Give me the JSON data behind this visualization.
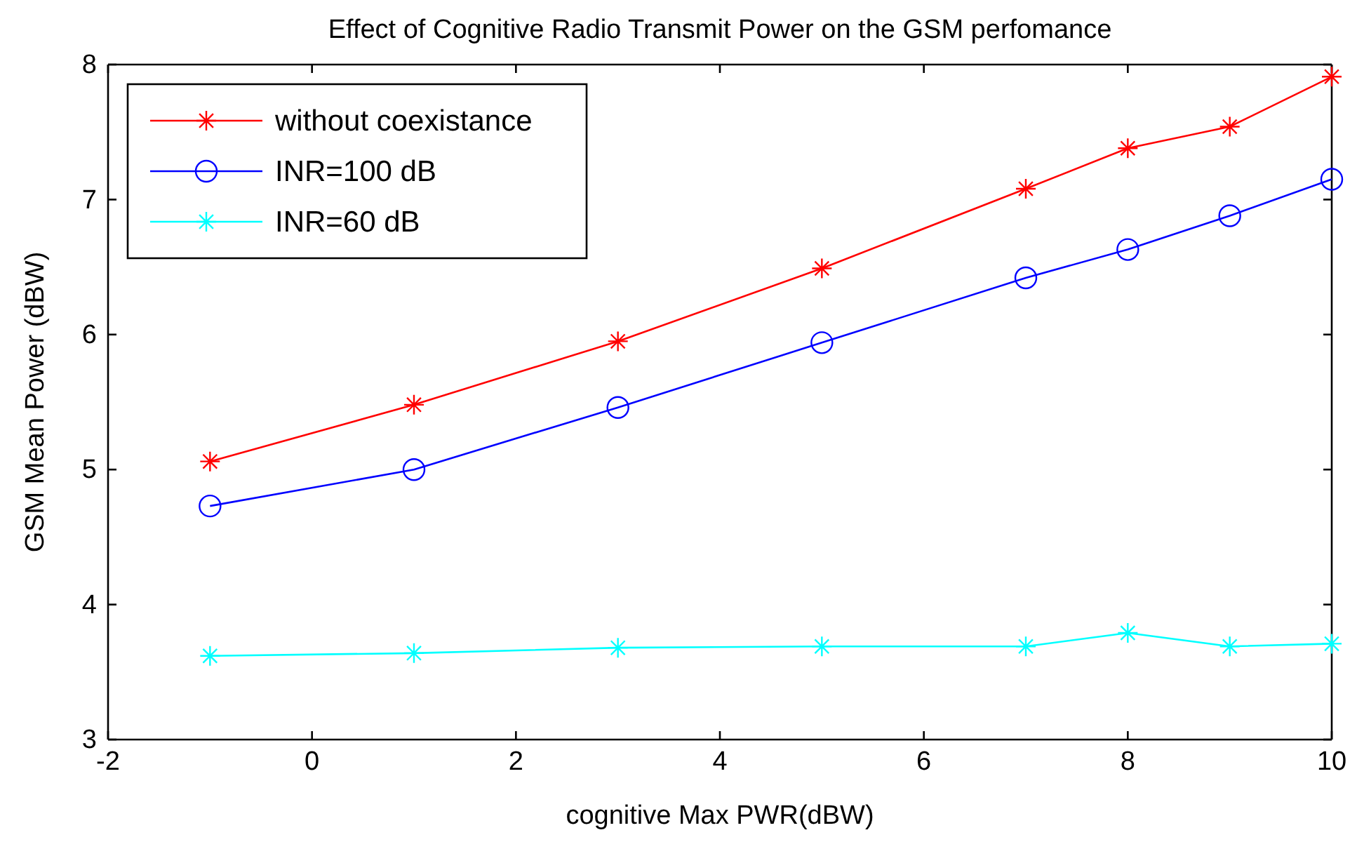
{
  "chart_data": {
    "type": "line",
    "title": "Effect of Cognitive Radio Transmit Power on the GSM perfomance",
    "xlabel": "cognitive Max PWR(dBW)",
    "ylabel": "GSM Mean Power (dBW)",
    "x": [
      -1,
      1,
      3,
      5,
      7,
      8,
      9,
      10
    ],
    "series": [
      {
        "name": "without coexistance",
        "color": "#ff0000",
        "marker": "cross",
        "values": [
          5.06,
          5.48,
          5.95,
          6.49,
          7.08,
          7.38,
          7.54,
          7.91
        ]
      },
      {
        "name": "INR=100 dB",
        "color": "#0000ff",
        "marker": "circle",
        "values": [
          4.73,
          5.0,
          5.46,
          5.94,
          6.42,
          6.63,
          6.88,
          7.15
        ]
      },
      {
        "name": "INR=60 dB",
        "color": "#00ffff",
        "marker": "cross",
        "values": [
          3.62,
          3.64,
          3.68,
          3.69,
          3.69,
          3.79,
          3.69,
          3.71
        ]
      }
    ],
    "xlim": [
      -2,
      10
    ],
    "xticks": [
      -2,
      0,
      2,
      4,
      6,
      8,
      10
    ],
    "ylim": [
      3,
      8
    ],
    "yticks": [
      3,
      4,
      5,
      6,
      7,
      8
    ],
    "grid": false,
    "legend": "top left",
    "line_style": "solid"
  }
}
